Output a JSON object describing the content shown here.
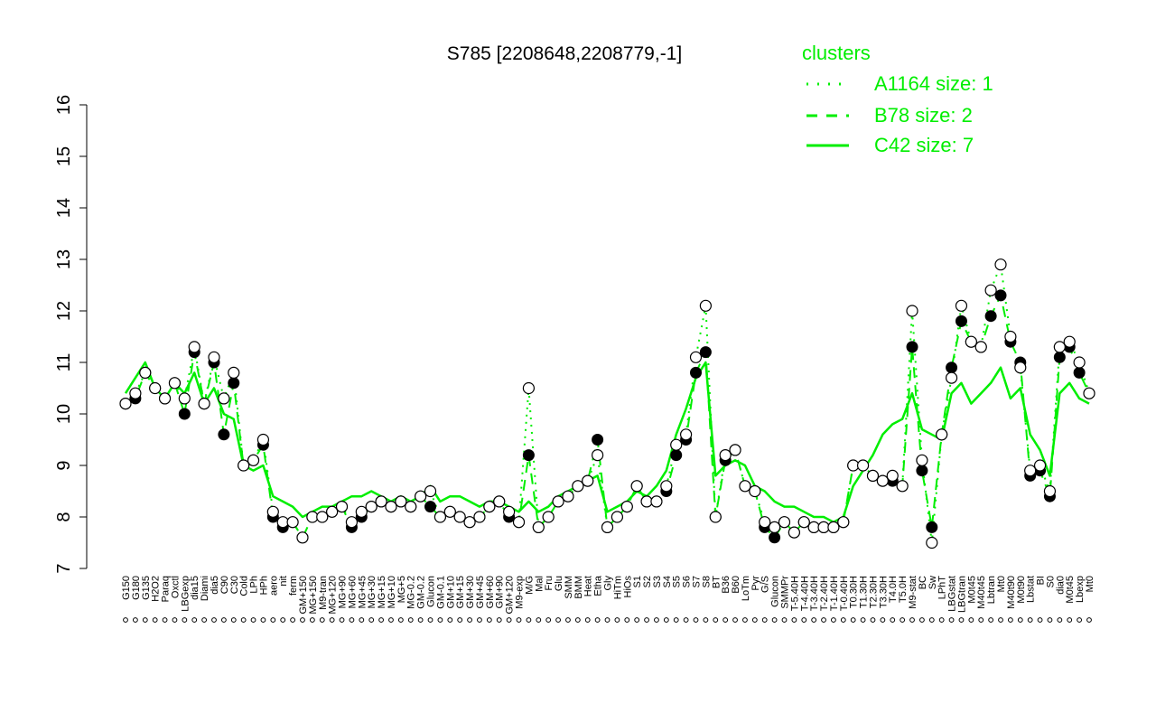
{
  "chart_data": {
    "type": "line",
    "title": "S785 [2208648,2208779,-1]",
    "xlabel": "",
    "ylabel": "",
    "ylim": [
      7,
      16
    ],
    "yticks": [
      7,
      8,
      9,
      10,
      11,
      12,
      13,
      14,
      15,
      16
    ],
    "grid": false,
    "legend": {
      "title": "clusters",
      "placement": "top-right",
      "items": [
        {
          "label": "A1164 size: 1",
          "style": "dotted"
        },
        {
          "label": "B78 size: 2",
          "style": "dashed"
        },
        {
          "label": "C42 size: 7",
          "style": "solid"
        }
      ]
    },
    "x_labels": [
      "G150",
      "G180",
      "G135",
      "H2O2",
      "Paraq",
      "Oxctl",
      "LBGexp",
      "dia15",
      "Diami",
      "dia5",
      "C90",
      "C30",
      "Cold",
      "LPh",
      "HPh",
      "aero",
      "nit",
      "ferm",
      "GM+150",
      "MG+150",
      "M9-tran",
      "MG+120",
      "MG+90",
      "MG+60",
      "MG+45",
      "MG+30",
      "MG+15",
      "MG+10",
      "MG+5",
      "MG-0.2",
      "GM-0.2",
      "Glucon",
      "GM-0.1",
      "GM+10",
      "GM+15",
      "GM+30",
      "GM+45",
      "GM+60",
      "GM+90",
      "GM+120",
      "M9-exp",
      "M/G",
      "Mal",
      "Fru",
      "Glu",
      "SMM",
      "BMM",
      "Heat",
      "Etha",
      "Gly",
      "HiTm",
      "HiOs",
      "S1",
      "S2",
      "S3",
      "S4",
      "S5",
      "S6",
      "S7",
      "S8",
      "BT",
      "B36",
      "B60",
      "LoTm",
      "Pyr",
      "G/S",
      "Glucon",
      "SMMPr",
      "T-5.40H",
      "T-4.40H",
      "T-3.40H",
      "T-2.40H",
      "T-1.40H",
      "T-0.40H",
      "T0.30H",
      "T1.30H",
      "T2.30H",
      "T3.30H",
      "T4.0H",
      "T5.0H",
      "M9-stat",
      "BC",
      "Sw",
      "LPhT",
      "LBGstat",
      "LBGtran",
      "M0t45",
      "M40t45",
      "Lbtran",
      "Mt0",
      "M40t90",
      "M0t90",
      "Lbstat",
      "BI",
      "S0",
      "dia0",
      "M0t45",
      "Lbexp",
      "Mt0"
    ],
    "series": [
      {
        "name": "C42 size: 7",
        "style": "solid",
        "values": [
          10.4,
          10.7,
          11.0,
          10.5,
          10.3,
          10.6,
          10.4,
          10.8,
          10.2,
          10.5,
          10.0,
          9.9,
          9.0,
          8.9,
          9.0,
          8.4,
          8.3,
          8.2,
          8.0,
          8.1,
          8.2,
          8.2,
          8.3,
          8.4,
          8.4,
          8.5,
          8.4,
          8.3,
          8.4,
          8.3,
          8.4,
          8.6,
          8.3,
          8.4,
          8.4,
          8.3,
          8.2,
          8.3,
          8.3,
          8.2,
          8.1,
          8.3,
          8.1,
          8.2,
          8.4,
          8.5,
          8.6,
          8.7,
          8.8,
          8.1,
          8.2,
          8.3,
          8.5,
          8.4,
          8.6,
          8.9,
          9.6,
          10.1,
          10.7,
          11.0,
          8.8,
          9.0,
          9.1,
          9.0,
          8.6,
          8.5,
          8.3,
          8.2,
          8.2,
          8.1,
          8.0,
          8.0,
          7.9,
          8.0,
          8.6,
          8.9,
          9.2,
          9.6,
          9.8,
          9.9,
          10.4,
          9.7,
          9.6,
          9.5,
          10.4,
          10.6,
          10.2,
          10.4,
          10.6,
          10.9,
          10.3,
          10.5,
          9.6,
          9.3,
          8.8,
          10.4,
          10.6,
          10.3,
          10.2
        ]
      },
      {
        "name": "B78 size: 2",
        "style": "dashed",
        "values": [
          10.2,
          10.3,
          10.8,
          10.5,
          10.3,
          10.6,
          10.0,
          11.2,
          10.2,
          11.0,
          9.6,
          10.6,
          9.0,
          9.1,
          9.4,
          8.0,
          7.8,
          7.9,
          7.6,
          8.0,
          8.0,
          8.1,
          8.2,
          7.8,
          8.0,
          8.2,
          8.3,
          8.2,
          8.3,
          8.2,
          8.4,
          8.2,
          8.0,
          8.1,
          8.0,
          7.9,
          8.0,
          8.2,
          8.3,
          8.0,
          7.9,
          9.2,
          7.8,
          8.0,
          8.3,
          8.4,
          8.6,
          8.7,
          9.5,
          7.8,
          8.0,
          8.2,
          8.6,
          8.3,
          8.3,
          8.5,
          9.2,
          9.5,
          10.8,
          11.2,
          8.0,
          9.1,
          9.3,
          8.6,
          8.5,
          7.8,
          7.6,
          7.9,
          7.7,
          7.9,
          7.8,
          7.8,
          7.8,
          7.9,
          9.0,
          9.0,
          8.8,
          8.7,
          8.7,
          8.6,
          11.3,
          8.9,
          7.8,
          9.6,
          10.9,
          11.8,
          11.4,
          11.3,
          11.9,
          12.3,
          11.4,
          11.0,
          8.8,
          8.9,
          8.4,
          11.1,
          11.3,
          10.8,
          10.4
        ]
      },
      {
        "name": "A1164 size: 1",
        "style": "dotted",
        "values": [
          10.2,
          10.4,
          10.8,
          10.5,
          10.3,
          10.6,
          10.3,
          11.3,
          10.2,
          11.1,
          10.3,
          10.8,
          9.0,
          9.1,
          9.5,
          8.1,
          7.9,
          7.9,
          7.6,
          8.0,
          8.0,
          8.1,
          8.2,
          7.9,
          8.1,
          8.2,
          8.3,
          8.2,
          8.3,
          8.2,
          8.4,
          8.5,
          8.0,
          8.1,
          8.0,
          7.9,
          8.0,
          8.2,
          8.3,
          8.1,
          7.9,
          10.5,
          7.8,
          8.0,
          8.3,
          8.4,
          8.6,
          8.7,
          9.2,
          7.8,
          8.0,
          8.2,
          8.6,
          8.3,
          8.3,
          8.6,
          9.4,
          9.6,
          11.1,
          12.1,
          8.0,
          9.2,
          9.3,
          8.6,
          8.5,
          7.9,
          7.8,
          7.9,
          7.7,
          7.9,
          7.8,
          7.8,
          7.8,
          7.9,
          9.0,
          9.0,
          8.8,
          8.7,
          8.8,
          8.6,
          12.0,
          9.1,
          7.5,
          9.6,
          10.7,
          12.1,
          11.4,
          11.3,
          12.4,
          12.9,
          11.5,
          10.9,
          8.9,
          9.0,
          8.5,
          11.3,
          11.4,
          11.0,
          10.4
        ]
      }
    ]
  }
}
